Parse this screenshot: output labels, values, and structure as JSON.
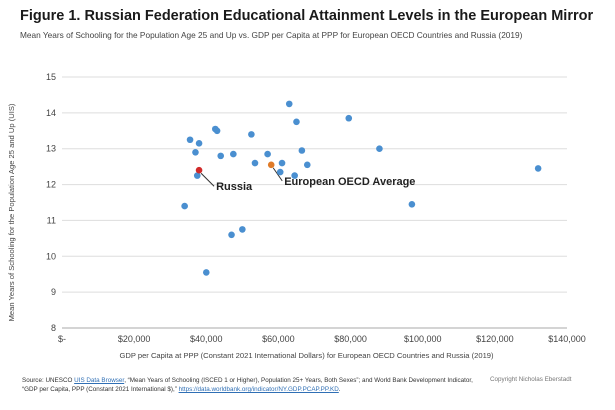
{
  "colors": {
    "point": "#4a8fd0",
    "russia": "#d12a2a",
    "europe_avg": "#e07b28",
    "grid": "#dddddd",
    "link": "#2f6fb5"
  },
  "chart_data": {
    "type": "scatter",
    "title": "Figure 1. Russian Federation Educational Attainment Levels in the European Mirror",
    "subtitle": "Mean Years of Schooling for the Population Age 25 and Up vs. GDP per Capita at PPP for European OECD Countries and Russia (2019)",
    "xlabel": "GDP per Capita at PPP (Constant 2021 International Dollars) for European OECD Countries and Russia (2019)",
    "ylabel": "Mean Years of Schooling for the Population Age 25 and Up (UIS)",
    "xlim": [
      0,
      140000
    ],
    "ylim": [
      8,
      15
    ],
    "xticks": [
      0,
      20000,
      40000,
      60000,
      80000,
      100000,
      120000,
      140000
    ],
    "xtick_labels": [
      "$-",
      "$20,000",
      "$40,000",
      "$60,000",
      "$80,000",
      "$100,000",
      "$120,000",
      "$140,000"
    ],
    "yticks": [
      8,
      9,
      10,
      11,
      12,
      13,
      14,
      15
    ],
    "ytick_labels": [
      "8",
      "9",
      "10",
      "11",
      "12",
      "13",
      "14",
      "15"
    ],
    "grid": "horizontal",
    "series": [
      {
        "name": "European OECD Countries",
        "points": [
          {
            "x": 34000,
            "y": 11.4
          },
          {
            "x": 35500,
            "y": 13.25
          },
          {
            "x": 37000,
            "y": 12.9
          },
          {
            "x": 37500,
            "y": 12.25
          },
          {
            "x": 38000,
            "y": 13.15
          },
          {
            "x": 40000,
            "y": 9.55
          },
          {
            "x": 42500,
            "y": 13.55
          },
          {
            "x": 43000,
            "y": 13.5
          },
          {
            "x": 44000,
            "y": 12.8
          },
          {
            "x": 47000,
            "y": 10.6
          },
          {
            "x": 47500,
            "y": 12.85
          },
          {
            "x": 50000,
            "y": 10.75
          },
          {
            "x": 52500,
            "y": 13.4
          },
          {
            "x": 53500,
            "y": 12.6
          },
          {
            "x": 57000,
            "y": 12.85
          },
          {
            "x": 60500,
            "y": 12.35
          },
          {
            "x": 61000,
            "y": 12.6
          },
          {
            "x": 63000,
            "y": 14.25
          },
          {
            "x": 64500,
            "y": 12.25
          },
          {
            "x": 65000,
            "y": 13.75
          },
          {
            "x": 66500,
            "y": 12.95
          },
          {
            "x": 68000,
            "y": 12.55
          },
          {
            "x": 79500,
            "y": 13.85
          },
          {
            "x": 88000,
            "y": 13.0
          },
          {
            "x": 97000,
            "y": 11.45
          },
          {
            "x": 132000,
            "y": 12.45
          }
        ]
      },
      {
        "name": "Russia",
        "points": [
          {
            "x": 38000,
            "y": 12.4
          }
        ]
      },
      {
        "name": "European OECD Average",
        "points": [
          {
            "x": 58000,
            "y": 12.55
          }
        ]
      }
    ],
    "annotations": [
      {
        "text": "Russia",
        "series": "Russia"
      },
      {
        "text": "European OECD Average",
        "series": "European OECD Average"
      }
    ]
  },
  "footer": {
    "source_prefix": "Source: UNESCO ",
    "source_link1": "UIS Data Browser",
    "source_mid": ", “Mean Years of Schooling (ISCED 1 or Higher), Population 25+ Years, Both Sexes”; and World Bank Development Indicator, “GDP per Capita, PPP (Constant 2021 International $),” ",
    "source_link2": "https://data.worldbank.org/indicator/NY.GDP.PCAP.PP.KD",
    "source_suffix": ".",
    "copyright": "Copyright Nicholas Eberstadt"
  }
}
